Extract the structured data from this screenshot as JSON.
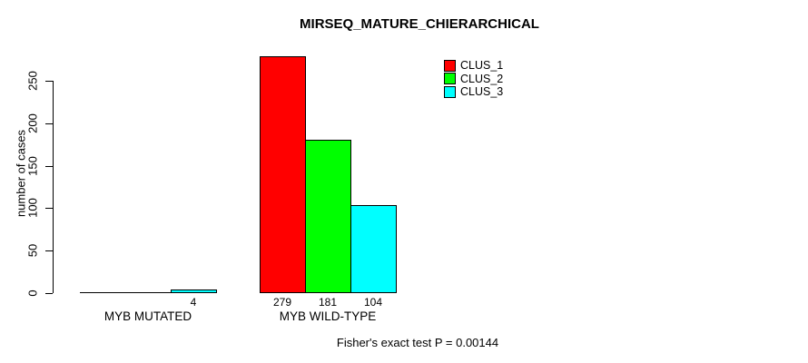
{
  "figure": {
    "background": "#ffffff",
    "text_color": "#000000"
  },
  "chart_data": {
    "type": "bar",
    "title": "MIRSEQ_MATURE_CHIERARCHICAL",
    "ylabel": "number of cases",
    "xlabel": "",
    "ylim": [
      0,
      250
    ],
    "yticks": [
      0,
      50,
      100,
      150,
      200,
      250
    ],
    "grid": "off",
    "categories": [
      "MYB MUTATED",
      "MYB WILD-TYPE"
    ],
    "series": [
      {
        "name": "CLUS_1",
        "color": "#ff0000",
        "values": [
          0,
          279
        ]
      },
      {
        "name": "CLUS_2",
        "color": "#00ff00",
        "values": [
          0,
          181
        ]
      },
      {
        "name": "CLUS_3",
        "color": "#00ffff",
        "values": [
          4,
          104
        ]
      }
    ],
    "bar_value_labels": [
      [
        "",
        "",
        "4"
      ],
      [
        "279",
        "181",
        "104"
      ]
    ],
    "legend_position": "top-right",
    "legend_entries": [
      "CLUS_1",
      "CLUS_2",
      "CLUS_3"
    ],
    "annotation": "Fisher's exact test P = 0.00144"
  }
}
